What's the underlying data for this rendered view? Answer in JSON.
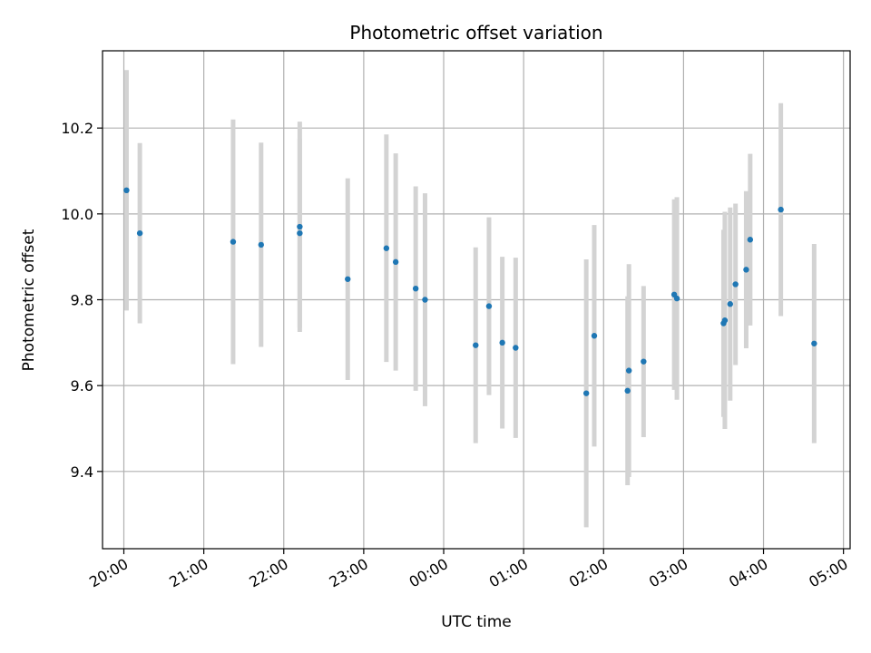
{
  "chart_data": {
    "type": "scatter",
    "title": "Photometric offset variation",
    "xlabel": "UTC time",
    "ylabel": "Photometric offset",
    "x_tick_labels": [
      "20:00",
      "21:00",
      "22:00",
      "23:00",
      "00:00",
      "01:00",
      "02:00",
      "03:00",
      "04:00",
      "05:00"
    ],
    "y_tick_labels": [
      "9.4",
      "9.6",
      "9.8",
      "10.0",
      "10.2"
    ],
    "x_tick_values": [
      "20:00",
      "21:00",
      "22:00",
      "23:00",
      "00:00",
      "01:00",
      "02:00",
      "03:00",
      "04:00",
      "05:00"
    ],
    "y_tick_values": [
      9.4,
      9.6,
      9.8,
      10.0,
      10.2
    ],
    "xlim": [
      "19:44",
      "05:05"
    ],
    "ylim": [
      9.22,
      10.38
    ],
    "grid": true,
    "colors": {
      "points": "#1f77b4",
      "errorbars": "#d3d3d3",
      "grid": "#b0b0b0"
    },
    "points": [
      {
        "x": "20:02",
        "y": 10.055,
        "yerr": 0.28
      },
      {
        "x": "20:12",
        "y": 9.955,
        "yerr": 0.21
      },
      {
        "x": "21:22",
        "y": 9.935,
        "yerr": 0.285
      },
      {
        "x": "21:43",
        "y": 9.928,
        "yerr": 0.238
      },
      {
        "x": "22:12",
        "y": 9.97,
        "yerr": 0.245
      },
      {
        "x": "22:12",
        "y": 9.955,
        "yerr": 0.22
      },
      {
        "x": "22:48",
        "y": 9.848,
        "yerr": 0.235
      },
      {
        "x": "23:17",
        "y": 9.92,
        "yerr": 0.265
      },
      {
        "x": "23:24",
        "y": 9.888,
        "yerr": 0.253
      },
      {
        "x": "23:39",
        "y": 9.826,
        "yerr": 0.238
      },
      {
        "x": "23:46",
        "y": 9.8,
        "yerr": 0.248
      },
      {
        "x": "00:24",
        "y": 9.694,
        "yerr": 0.228
      },
      {
        "x": "00:34",
        "y": 9.785,
        "yerr": 0.207
      },
      {
        "x": "00:44",
        "y": 9.7,
        "yerr": 0.2
      },
      {
        "x": "00:54",
        "y": 9.688,
        "yerr": 0.21
      },
      {
        "x": "01:47",
        "y": 9.582,
        "yerr": 0.312
      },
      {
        "x": "01:53",
        "y": 9.716,
        "yerr": 0.258
      },
      {
        "x": "02:18",
        "y": 9.588,
        "yerr": 0.22
      },
      {
        "x": "02:19",
        "y": 9.635,
        "yerr": 0.248
      },
      {
        "x": "02:30",
        "y": 9.656,
        "yerr": 0.176
      },
      {
        "x": "02:53",
        "y": 9.812,
        "yerr": 0.222
      },
      {
        "x": "02:55",
        "y": 9.803,
        "yerr": 0.236
      },
      {
        "x": "03:30",
        "y": 9.745,
        "yerr": 0.218
      },
      {
        "x": "03:31",
        "y": 9.752,
        "yerr": 0.253
      },
      {
        "x": "03:35",
        "y": 9.79,
        "yerr": 0.225
      },
      {
        "x": "03:39",
        "y": 9.836,
        "yerr": 0.188
      },
      {
        "x": "03:47",
        "y": 9.87,
        "yerr": 0.183
      },
      {
        "x": "03:50",
        "y": 9.94,
        "yerr": 0.2
      },
      {
        "x": "04:13",
        "y": 10.01,
        "yerr": 0.248
      },
      {
        "x": "04:38",
        "y": 9.698,
        "yerr": 0.232
      }
    ]
  }
}
